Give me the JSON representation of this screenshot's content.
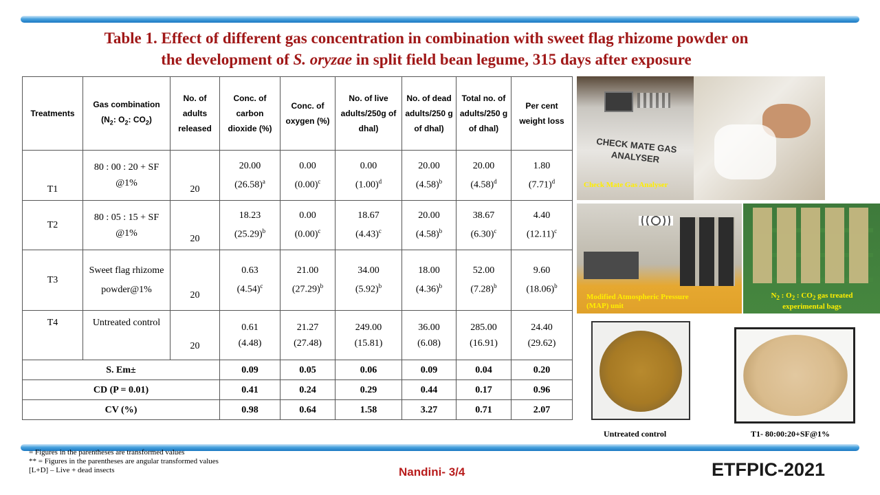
{
  "title": {
    "line1": "Table  1. Effect of different gas concentration in combination with sweet flag rhizome powder on",
    "line2_pre": "the development of ",
    "line2_italic": "S. oryzae",
    "line2_post": " in split  field bean legume, 315 days after exposure"
  },
  "table": {
    "headers": {
      "treatments": "Treatments",
      "gas_a": "Gas combination",
      "gas_b": "(N",
      "gas_n2sub": "2",
      "gas_c": ":  O",
      "gas_o2sub": "2",
      "gas_d": ": CO",
      "gas_co2sub": "2",
      "gas_e": ")",
      "adults": "No. of adults released",
      "co2": "Conc. of carbon dioxide (%)",
      "oxygen": "Conc. of oxygen (%)",
      "live": "No. of live adults/250g of dhal)",
      "dead": "No. of dead adults/250 g of dhal)",
      "total": "Total no. of adults/250 g of dhal)",
      "weight": "Per cent weight loss"
    },
    "rows": [
      {
        "treatment": "T1",
        "gas": "80 : 00 : 20 + SF @1%",
        "adults": "20",
        "co2_v": "20.00",
        "co2_t": "(26.58)",
        "co2_s": "a",
        "o2_v": "0.00",
        "o2_t": "(0.00)",
        "o2_s": "c",
        "live_v": "0.00",
        "live_t": "(1.00)",
        "live_s": "d",
        "dead_v": "20.00",
        "dead_t": "(4.58)",
        "dead_s": "b",
        "total_v": "20.00",
        "total_t": "(4.58)",
        "total_s": "d",
        "wl_v": "1.80",
        "wl_t": "(7.71)",
        "wl_s": "d"
      },
      {
        "treatment": "T2",
        "gas": "80 : 05 : 15 + SF @1%",
        "adults": "20",
        "co2_v": "18.23",
        "co2_t": "(25.29)",
        "co2_s": "b",
        "o2_v": "0.00",
        "o2_t": "(0.00)",
        "o2_s": "c",
        "live_v": "18.67",
        "live_t": "(4.43)",
        "live_s": "c",
        "dead_v": "20.00",
        "dead_t": "(4.58)",
        "dead_s": "b",
        "total_v": "38.67",
        "total_t": "(6.30)",
        "total_s": "c",
        "wl_v": "4.40",
        "wl_t": "(12.11)",
        "wl_s": "c"
      },
      {
        "treatment": "T3",
        "gas": "Sweet flag rhizome powder@1%",
        "adults": "20",
        "co2_v": "0.63",
        "co2_t": "(4.54)",
        "co2_s": "c",
        "o2_v": "21.00",
        "o2_t": "(27.29)",
        "o2_s": "b",
        "live_v": "34.00",
        "live_t": "(5.92)",
        "live_s": "b",
        "dead_v": "18.00",
        "dead_t": "(4.36)",
        "dead_s": "b",
        "total_v": "52.00",
        "total_t": "(7.28)",
        "total_s": "b",
        "wl_v": "9.60",
        "wl_t": "(18.06)",
        "wl_s": "b"
      },
      {
        "treatment": "T4",
        "gas": "Untreated  control",
        "adults": "20",
        "co2_v": "0.61",
        "co2_t": "(4.48)",
        "co2_s": "",
        "o2_v": "21.27",
        "o2_t": "(27.48)",
        "o2_s": "",
        "live_v": "249.00",
        "live_t": "(15.81)",
        "live_s": "",
        "dead_v": "36.00",
        "dead_t": "(6.08)",
        "dead_s": "",
        "total_v": "285.00",
        "total_t": "(16.91)",
        "total_s": "",
        "wl_v": "24.40",
        "wl_t": "(29.62)",
        "wl_s": ""
      }
    ],
    "stats": [
      {
        "label": "S. Em±",
        "v": [
          "0.09",
          "0.05",
          "0.06",
          "0.09",
          "0.04",
          "0.20"
        ]
      },
      {
        "label": "CD (P = 0.01)",
        "v": [
          "0.41",
          "0.24",
          "0.29",
          "0.44",
          "0.17",
          "0.96"
        ]
      },
      {
        "label": "CV (%)",
        "v": [
          "0.98",
          "0.64",
          "1.58",
          "3.27",
          "0.71",
          "2.07"
        ]
      }
    ]
  },
  "photos": {
    "gas_analyser_caption": "Check Mate Gas Analyser",
    "analyser_label_1": "CHECK MATE GAS",
    "analyser_label_2": "ANALYSER",
    "map_caption": "Modified  Atmospheric Pressure (MAP)  unit",
    "bags_caption_a": "N",
    "bags_caption_b": "2",
    "bags_caption_c": " : O",
    "bags_caption_d": "2",
    "bags_caption_e": " : CO",
    "bags_caption_f": "2",
    "bags_caption_g": " gas treated experimental  bags",
    "untreated_caption": "Untreated   control",
    "treated_caption": "T1- 80:00:20+SF@1%"
  },
  "footnotes": {
    "line1": "= Figures in the parentheses are  transformed values",
    "line2": "** = Figures in the parentheses are angular transformed values",
    "line3": "[L+D]  – Live + dead insects"
  },
  "author": "Nandini- 3/4",
  "conference": "ETFPIC-2021",
  "colors": {
    "title": "#a01818",
    "band": "#1b78c2",
    "caption": "#ffee00"
  }
}
